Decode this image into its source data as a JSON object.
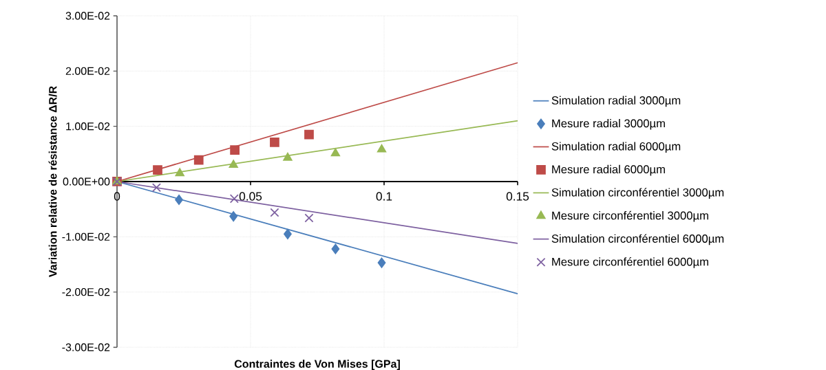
{
  "chart_data": {
    "type": "scatter",
    "xlabel": "Contraintes de Von Mises [GPa]",
    "ylabel": "Variation relative de résistance ΔR/R",
    "xlim": [
      0,
      0.15
    ],
    "ylim": [
      -0.03,
      0.03
    ],
    "xticks": [
      0,
      0.05,
      0.1,
      0.15
    ],
    "yticks": [
      {
        "value": -0.03,
        "label": "-3.00E-02"
      },
      {
        "value": -0.02,
        "label": "-2.00E-02"
      },
      {
        "value": -0.01,
        "label": "-1.00E-02"
      },
      {
        "value": 0,
        "label": "0.00E+00"
      },
      {
        "value": 0.01,
        "label": "1.00E-02"
      },
      {
        "value": 0.02,
        "label": "2.00E-02"
      },
      {
        "value": 0.03,
        "label": "3.00E-02"
      }
    ],
    "grid": true,
    "legend": "right",
    "series": [
      {
        "name": "Simulation radial 3000µm",
        "type": "line",
        "marker": "none",
        "color": "#4a7ebb",
        "x": [
          0,
          0.15
        ],
        "values": [
          0,
          -0.0203
        ]
      },
      {
        "name": "Mesure radial 3000µm",
        "marker": "diamond",
        "color": "#4a7ebb",
        "x": [
          0,
          0.0232,
          0.0436,
          0.0639,
          0.0818,
          0.0991
        ],
        "values": [
          0,
          -0.0033,
          -0.0063,
          -0.0095,
          -0.0122,
          -0.0147
        ]
      },
      {
        "name": "Simulation radial 6000µm",
        "type": "line",
        "marker": "none",
        "color": "#be4b48",
        "x": [
          0,
          0.15
        ],
        "values": [
          0,
          0.0215
        ]
      },
      {
        "name": "Mesure radial 6000µm",
        "marker": "square",
        "color": "#be4b48",
        "x": [
          0,
          0.0152,
          0.0306,
          0.0441,
          0.059,
          0.0719
        ],
        "values": [
          0,
          0.0021,
          0.0039,
          0.0057,
          0.0071,
          0.0085
        ]
      },
      {
        "name": "Simulation circonférentiel 3000µm",
        "type": "line",
        "marker": "none",
        "color": "#98b954",
        "x": [
          0,
          0.15
        ],
        "values": [
          0,
          0.011
        ]
      },
      {
        "name": "Mesure circonférentiel 3000µm",
        "marker": "triangle",
        "color": "#98b954",
        "x": [
          0,
          0.0235,
          0.0436,
          0.0639,
          0.0818,
          0.0991
        ],
        "values": [
          0,
          0.0015,
          0.003,
          0.0043,
          0.0051,
          0.0058
        ]
      },
      {
        "name": "Simulation circonférentiel 6000µm",
        "type": "line",
        "marker": "none",
        "color": "#7d60a0",
        "x": [
          0,
          0.15
        ],
        "values": [
          0,
          -0.0112
        ]
      },
      {
        "name": "Mesure circonférentiel 6000µm",
        "marker": "cross",
        "color": "#7d60a0",
        "x": [
          0,
          0.0148,
          0.0439,
          0.059,
          0.0719
        ],
        "values": [
          0,
          -0.0011,
          -0.0031,
          -0.0056,
          -0.0066
        ]
      }
    ]
  }
}
